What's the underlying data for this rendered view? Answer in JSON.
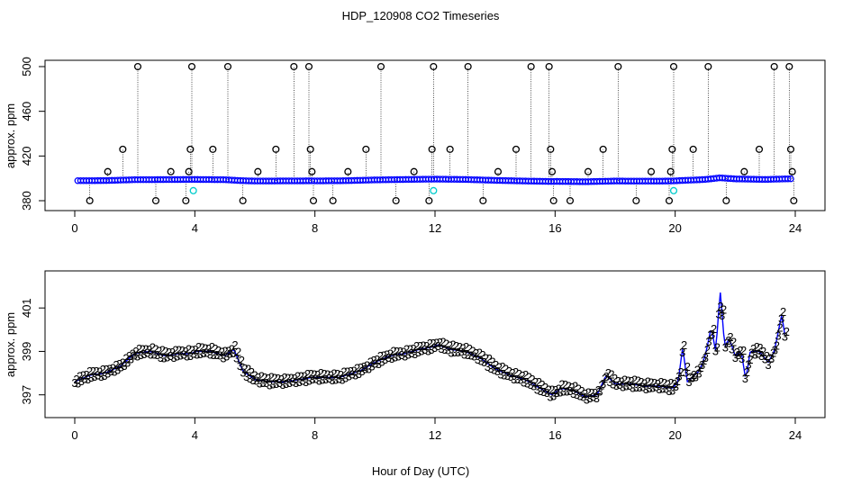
{
  "title": "HDP_120908  CO2 Timeseries",
  "xlabel": "Hour of Day (UTC)",
  "colors": {
    "baseline": "#0000ff",
    "outlier": "#000000",
    "cal": "#00cccc",
    "ch2": "#00cc00",
    "ch3": "#0000cc",
    "line": "#0000ff"
  },
  "chart_data": [
    {
      "type": "scatter",
      "ylabel": "approx. ppm",
      "xlim": [
        0,
        24
      ],
      "ylim": [
        380,
        500
      ],
      "xticks": [
        "0",
        "4",
        "8",
        "12",
        "16",
        "20",
        "24"
      ],
      "yticks": [
        "380",
        "420",
        "460",
        "500"
      ],
      "baseline": [
        [
          0.1,
          397.9
        ],
        [
          1.0,
          398.0
        ],
        [
          2.0,
          398.8
        ],
        [
          3.0,
          398.9
        ],
        [
          3.8,
          399.0
        ],
        [
          4.0,
          399.0
        ],
        [
          5.0,
          398.8
        ],
        [
          5.5,
          398.0
        ],
        [
          6.0,
          397.6
        ],
        [
          7.0,
          397.7
        ],
        [
          7.9,
          397.8
        ],
        [
          8.0,
          397.7
        ],
        [
          9.0,
          397.9
        ],
        [
          10.0,
          398.6
        ],
        [
          11.0,
          399.0
        ],
        [
          12.0,
          399.3
        ],
        [
          13.0,
          399.0
        ],
        [
          14.0,
          398.2
        ],
        [
          15.0,
          397.6
        ],
        [
          15.9,
          397.2
        ],
        [
          16.0,
          397.3
        ],
        [
          17.0,
          397.0
        ],
        [
          18.0,
          397.6
        ],
        [
          19.0,
          397.5
        ],
        [
          19.9,
          397.6
        ],
        [
          20.0,
          397.8
        ],
        [
          21.0,
          399.0
        ],
        [
          21.5,
          400.5
        ],
        [
          22.0,
          399.5
        ],
        [
          23.0,
          399.0
        ],
        [
          23.8,
          399.6
        ]
      ],
      "outliers": [
        [
          0.5,
          380
        ],
        [
          1.1,
          406
        ],
        [
          1.6,
          426
        ],
        [
          2.1,
          500
        ],
        [
          2.7,
          380
        ],
        [
          3.2,
          406
        ],
        [
          3.7,
          380
        ],
        [
          3.8,
          406
        ],
        [
          3.85,
          426
        ],
        [
          3.9,
          500
        ],
        [
          4.6,
          426
        ],
        [
          5.1,
          500
        ],
        [
          5.6,
          380
        ],
        [
          6.1,
          406
        ],
        [
          6.7,
          426
        ],
        [
          7.3,
          500
        ],
        [
          7.8,
          500
        ],
        [
          7.85,
          426
        ],
        [
          7.9,
          406
        ],
        [
          7.95,
          380
        ],
        [
          8.6,
          380
        ],
        [
          9.1,
          406
        ],
        [
          9.7,
          426
        ],
        [
          10.2,
          500
        ],
        [
          10.7,
          380
        ],
        [
          11.3,
          406
        ],
        [
          11.8,
          380
        ],
        [
          11.9,
          426
        ],
        [
          11.95,
          500
        ],
        [
          12.5,
          426
        ],
        [
          13.1,
          500
        ],
        [
          13.6,
          380
        ],
        [
          14.1,
          406
        ],
        [
          14.7,
          426
        ],
        [
          15.2,
          500
        ],
        [
          15.8,
          500
        ],
        [
          15.85,
          426
        ],
        [
          15.9,
          406
        ],
        [
          15.95,
          380
        ],
        [
          16.5,
          380
        ],
        [
          17.1,
          406
        ],
        [
          17.6,
          426
        ],
        [
          18.1,
          500
        ],
        [
          18.7,
          380
        ],
        [
          19.2,
          406
        ],
        [
          19.8,
          380
        ],
        [
          19.85,
          406
        ],
        [
          19.9,
          426
        ],
        [
          19.95,
          500
        ],
        [
          20.6,
          426
        ],
        [
          21.1,
          500
        ],
        [
          21.7,
          380
        ],
        [
          22.3,
          406
        ],
        [
          22.8,
          426
        ],
        [
          23.3,
          500
        ],
        [
          23.8,
          500
        ],
        [
          23.85,
          426
        ],
        [
          23.9,
          406
        ],
        [
          23.95,
          380
        ]
      ],
      "cal_points": [
        [
          3.95,
          389
        ],
        [
          11.95,
          389
        ],
        [
          19.95,
          389
        ]
      ]
    },
    {
      "type": "line",
      "ylabel": "approx. ppm",
      "xlim": [
        0,
        24
      ],
      "ylim": [
        396.2,
        402.5
      ],
      "xticks": [
        "0",
        "4",
        "8",
        "12",
        "16",
        "20",
        "24"
      ],
      "yticks": [
        "397",
        "399",
        "401"
      ],
      "markers": [
        "2",
        "3"
      ],
      "series_points": [
        [
          0,
          397.6
        ],
        [
          0.5,
          397.9
        ],
        [
          1.0,
          398.0
        ],
        [
          1.5,
          398.3
        ],
        [
          2.0,
          398.9
        ],
        [
          2.5,
          399.0
        ],
        [
          3.0,
          398.8
        ],
        [
          3.5,
          398.9
        ],
        [
          3.9,
          398.9
        ],
        [
          4.0,
          399.0
        ],
        [
          4.5,
          399.0
        ],
        [
          5.0,
          398.8
        ],
        [
          5.3,
          399.1
        ],
        [
          5.6,
          398.1
        ],
        [
          6.0,
          397.7
        ],
        [
          6.5,
          397.6
        ],
        [
          7.0,
          397.6
        ],
        [
          7.5,
          397.7
        ],
        [
          7.9,
          397.8
        ],
        [
          8.2,
          397.8
        ],
        [
          8.8,
          397.8
        ],
        [
          9.5,
          398.1
        ],
        [
          10.0,
          398.5
        ],
        [
          10.5,
          398.8
        ],
        [
          11.0,
          398.9
        ],
        [
          11.5,
          399.1
        ],
        [
          11.9,
          399.2
        ],
        [
          12.1,
          399.3
        ],
        [
          12.5,
          399.1
        ],
        [
          13.0,
          399.0
        ],
        [
          13.5,
          398.7
        ],
        [
          14.0,
          398.2
        ],
        [
          14.5,
          397.9
        ],
        [
          15.0,
          397.7
        ],
        [
          15.5,
          397.3
        ],
        [
          15.9,
          397.0
        ],
        [
          16.2,
          397.3
        ],
        [
          16.6,
          397.2
        ],
        [
          17.0,
          396.9
        ],
        [
          17.4,
          397.0
        ],
        [
          17.7,
          397.9
        ],
        [
          18.0,
          397.5
        ],
        [
          18.5,
          397.5
        ],
        [
          19.0,
          397.4
        ],
        [
          19.5,
          397.4
        ],
        [
          19.9,
          397.3
        ],
        [
          20.1,
          397.6
        ],
        [
          20.25,
          399.2
        ],
        [
          20.4,
          397.6
        ],
        [
          20.8,
          398.1
        ],
        [
          21.0,
          398.8
        ],
        [
          21.2,
          400.1
        ],
        [
          21.35,
          399.0
        ],
        [
          21.5,
          401.8
        ],
        [
          21.65,
          399.2
        ],
        [
          21.8,
          399.6
        ],
        [
          22.0,
          398.8
        ],
        [
          22.2,
          399.0
        ],
        [
          22.35,
          397.7
        ],
        [
          22.5,
          399.0
        ],
        [
          22.8,
          399.0
        ],
        [
          23.1,
          398.5
        ],
        [
          23.3,
          399.0
        ],
        [
          23.55,
          400.7
        ],
        [
          23.7,
          399.3
        ]
      ]
    }
  ]
}
